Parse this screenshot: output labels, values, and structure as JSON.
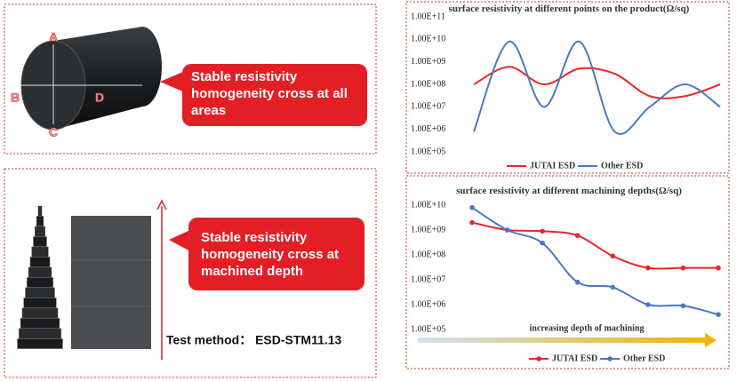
{
  "illustration_top": {
    "letters": [
      "A",
      "B",
      "C",
      "D"
    ],
    "callout": "Stable resistivity homogeneity cross at all areas"
  },
  "illustration_bottom": {
    "callout": "Stable resistivity homogeneity cross at machined depth",
    "test_method": "Test method： ESD-STM11.13"
  },
  "chart_data": [
    {
      "type": "line",
      "title": "surface resistivity at different points on the product(Ω/sq)",
      "yscale": "log",
      "smooth": true,
      "markers": false,
      "categories": [
        null,
        null,
        null,
        null,
        null,
        null,
        null,
        null
      ],
      "series": [
        {
          "name": "JUTAI ESD",
          "color": "#e8262a",
          "values": [
            100000000,
            600000000,
            100000000,
            500000000,
            300000000,
            30000000,
            30000000,
            100000000
          ]
        },
        {
          "name": "Other ESD",
          "color": "#4a78c4",
          "values": [
            800000,
            8000000000,
            10000000,
            8000000000,
            800000,
            10000000,
            100000000,
            10000000
          ]
        }
      ],
      "ylim": [
        100000,
        100000000000
      ],
      "yticks": [
        {
          "value": 100000,
          "label": "1.00E+05"
        },
        {
          "value": 1000000,
          "label": "1.00E+06"
        },
        {
          "value": 10000000,
          "label": "1.00E+07"
        },
        {
          "value": 100000000,
          "label": "1.00E+08"
        },
        {
          "value": 1000000000,
          "label": "1.00E+09"
        },
        {
          "value": 10000000000,
          "label": "1.00E+10"
        },
        {
          "value": 100000000000,
          "label": "1.00E+11"
        }
      ],
      "legend": "bottom"
    },
    {
      "type": "line",
      "title": "surface resistivity at different machining depths(Ω/sq)",
      "yscale": "log",
      "smooth": true,
      "markers": true,
      "annotation": "increasing depth of machining",
      "categories": [
        null,
        null,
        null,
        null,
        null,
        null,
        null,
        null
      ],
      "series": [
        {
          "name": "JUTAI ESD",
          "color": "#e8262a",
          "values": [
            2000000000,
            1000000000,
            900000000,
            600000000,
            90000000,
            30000000,
            30000000,
            30000000
          ]
        },
        {
          "name": "Other ESD",
          "color": "#4a78c4",
          "values": [
            8000000000,
            1000000000,
            300000000,
            8000000,
            5000000,
            1000000,
            900000,
            400000
          ]
        }
      ],
      "ylim": [
        100000,
        10000000000
      ],
      "yticks": [
        {
          "value": 100000,
          "label": "1.00E+05"
        },
        {
          "value": 1000000,
          "label": "1.00E+06"
        },
        {
          "value": 10000000,
          "label": "1.00E+07"
        },
        {
          "value": 100000000,
          "label": "1.00E+08"
        },
        {
          "value": 1000000000,
          "label": "1.00E+09"
        },
        {
          "value": 10000000000,
          "label": "1.00E+10"
        }
      ],
      "legend": "bottom"
    }
  ]
}
